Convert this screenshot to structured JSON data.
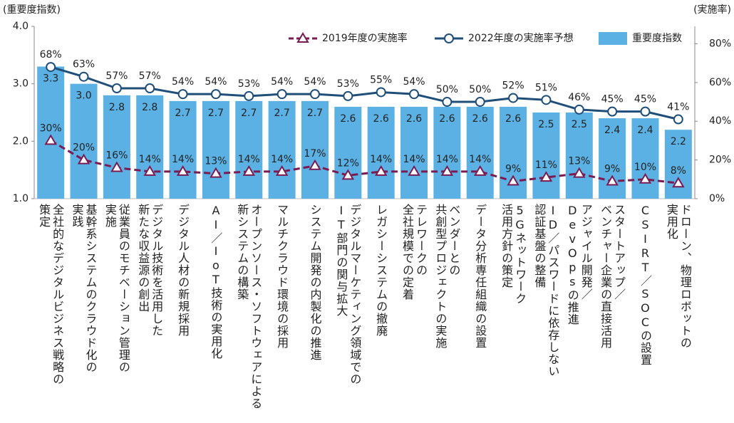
{
  "chart_data": {
    "type": "combo",
    "y_title": "(重要度指数)",
    "y2_title": "(実施率)",
    "categories": [
      "全社的なデジタルビジネス戦略の\n策定",
      "基幹系システムのクラウド化の\n実践",
      "従業員のモチベーション管理の\n実施",
      "デジタル技術を活用した\n新たな収益源の創出",
      "デジタル人材の新規採用",
      "AI／IoT技術の実用化",
      "オープンソース・ソフトウェアによる\n新システムの構築",
      "マルチクラウド環境の採用",
      "システム開発の内製化の推進",
      "デジタルマーケティング領域での\nIT部門の関与拡大",
      "レガシーシステムの撤廃",
      "テレワークの\n全社規模での定着",
      "ベンダーとの\n共創型プロジェクトの実施",
      "データ分析専任組織の設置",
      "5Gネットワーク\n活用方針の策定",
      "ID／パスワードに依存しない\n認証基盤の整備",
      "アジャイル開発／\nDevOpsの推進",
      "スタートアップ／\nベンチャー企業の直接活用",
      "CSIRT／SOCの設置",
      "ドローン、物理ロボットの\n実用化"
    ],
    "series": [
      {
        "name": "2019年度の実施率",
        "type": "line",
        "dashed": true,
        "marker": "triangle",
        "axis": "y2",
        "color": "#7a1c52",
        "values": [
          30,
          20,
          16,
          14,
          14,
          13,
          14,
          14,
          17,
          12,
          14,
          14,
          14,
          14,
          9,
          11,
          13,
          9,
          10,
          8
        ],
        "value_labels": [
          "30%",
          "20%",
          "16%",
          "14%",
          "14%",
          "13%",
          "14%",
          "14%",
          "17%",
          "12%",
          "14%",
          "14%",
          "14%",
          "14%",
          "9%",
          "11%",
          "13%",
          "9%",
          "10%",
          "8%"
        ]
      },
      {
        "name": "2022年度の実施率予想",
        "type": "line",
        "dashed": false,
        "marker": "circle",
        "axis": "y2",
        "color": "#1f4e79",
        "values": [
          68,
          63,
          57,
          57,
          54,
          54,
          53,
          54,
          54,
          53,
          55,
          54,
          50,
          50,
          52,
          51,
          46,
          45,
          45,
          41
        ],
        "value_labels": [
          "68%",
          "63%",
          "57%",
          "57%",
          "54%",
          "54%",
          "53%",
          "54%",
          "54%",
          "53%",
          "55%",
          "54%",
          "50%",
          "50%",
          "52%",
          "51%",
          "46%",
          "45%",
          "45%",
          "41%"
        ]
      },
      {
        "name": "重要度指数",
        "type": "bar",
        "axis": "y",
        "color": "#5bb1e3",
        "values": [
          3.3,
          3.0,
          2.8,
          2.8,
          2.7,
          2.7,
          2.7,
          2.7,
          2.7,
          2.6,
          2.6,
          2.6,
          2.6,
          2.6,
          2.6,
          2.5,
          2.5,
          2.4,
          2.4,
          2.2
        ],
        "value_labels": [
          "3.3",
          "3.0",
          "2.8",
          "2.8",
          "2.7",
          "2.7",
          "2.7",
          "2.7",
          "2.7",
          "2.6",
          "2.6",
          "2.6",
          "2.6",
          "2.6",
          "2.6",
          "2.5",
          "2.5",
          "2.4",
          "2.4",
          "2.2"
        ]
      }
    ],
    "ylim": [
      1,
      4
    ],
    "yticks": [
      {
        "value": 1,
        "label": "1.0"
      },
      {
        "value": 2,
        "label": "2.0"
      },
      {
        "value": 3,
        "label": "3.0"
      },
      {
        "value": 4,
        "label": "4.0"
      }
    ],
    "y2lim": [
      0,
      89
    ],
    "y2ticks": [
      {
        "value": 0,
        "label": "0%"
      },
      {
        "value": 20,
        "label": "20%"
      },
      {
        "value": 40,
        "label": "40%"
      },
      {
        "value": 60,
        "label": "60%"
      },
      {
        "value": 80,
        "label": "80%"
      }
    ]
  }
}
